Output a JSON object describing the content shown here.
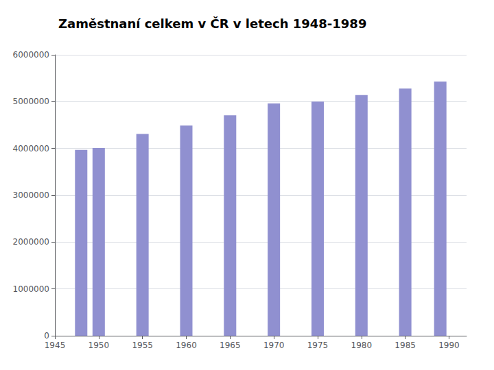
{
  "chart_data": {
    "type": "bar",
    "title": "Zaměstnaní celkem v ČR v letech 1948-1989",
    "x": [
      1948,
      1950,
      1955,
      1960,
      1965,
      1970,
      1975,
      1980,
      1985,
      1989
    ],
    "values": [
      3970000,
      4010000,
      4310000,
      4490000,
      4710000,
      4960000,
      5000000,
      5140000,
      5280000,
      5430000
    ],
    "color": "#9090d0",
    "xlim": [
      1945,
      1992
    ],
    "xticks": [
      1945,
      1950,
      1955,
      1960,
      1965,
      1970,
      1975,
      1980,
      1985,
      1990
    ],
    "ylim": [
      0,
      6000000
    ],
    "yticks": [
      0,
      1000000,
      2000000,
      3000000,
      4000000,
      5000000,
      6000000
    ],
    "grid": true
  }
}
